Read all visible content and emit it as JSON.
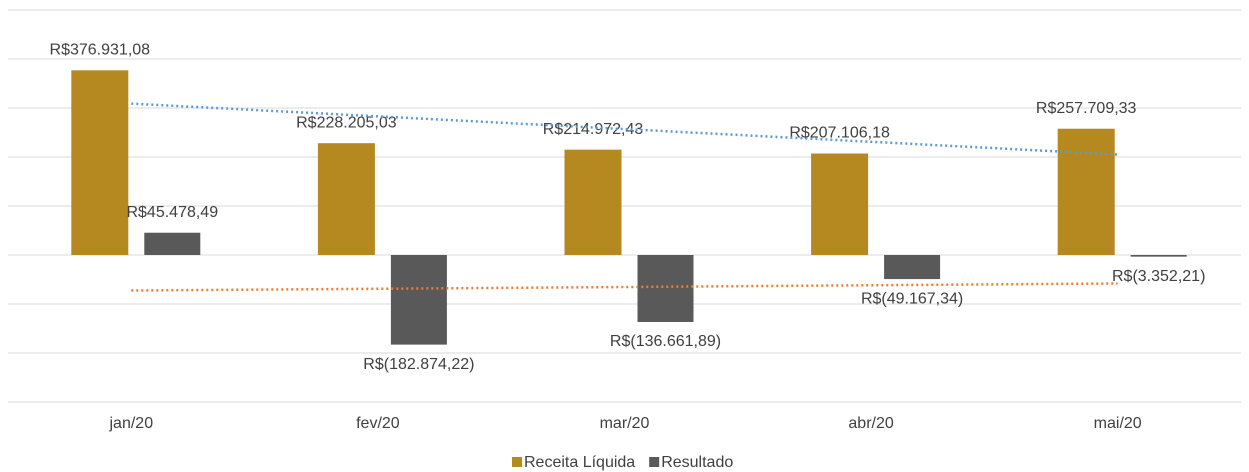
{
  "chart_data": {
    "type": "bar",
    "categories": [
      "jan/20",
      "fev/20",
      "mar/20",
      "abr/20",
      "mai/20"
    ],
    "series": [
      {
        "name": "Receita Líquida",
        "color": "#b5891f",
        "trend_color": "#5b9bd5",
        "values": [
          376931.08,
          228205.03,
          214972.43,
          207106.18,
          257709.33
        ],
        "value_labels": [
          "R$376.931,08",
          "R$228.205,03",
          "R$214.972,43",
          "R$207.106,18",
          "R$257.709,33"
        ]
      },
      {
        "name": "Resultado",
        "color": "#595959",
        "trend_color": "#ed7d31",
        "values": [
          45478.49,
          -182874.22,
          -136661.89,
          -49167.34,
          -3352.21
        ],
        "value_labels": [
          "R$45.478,49",
          "R$(182.874,22)",
          "R$(136.661,89)",
          "R$(49.167,34)",
          "R$(3.352,21)"
        ]
      }
    ],
    "ylim": [
      -300000,
      500000
    ],
    "yticks": [
      -300000,
      -200000,
      -100000,
      0,
      100000,
      200000,
      300000,
      400000,
      500000
    ],
    "grid": true,
    "trendline": true,
    "legend": "bottom"
  }
}
